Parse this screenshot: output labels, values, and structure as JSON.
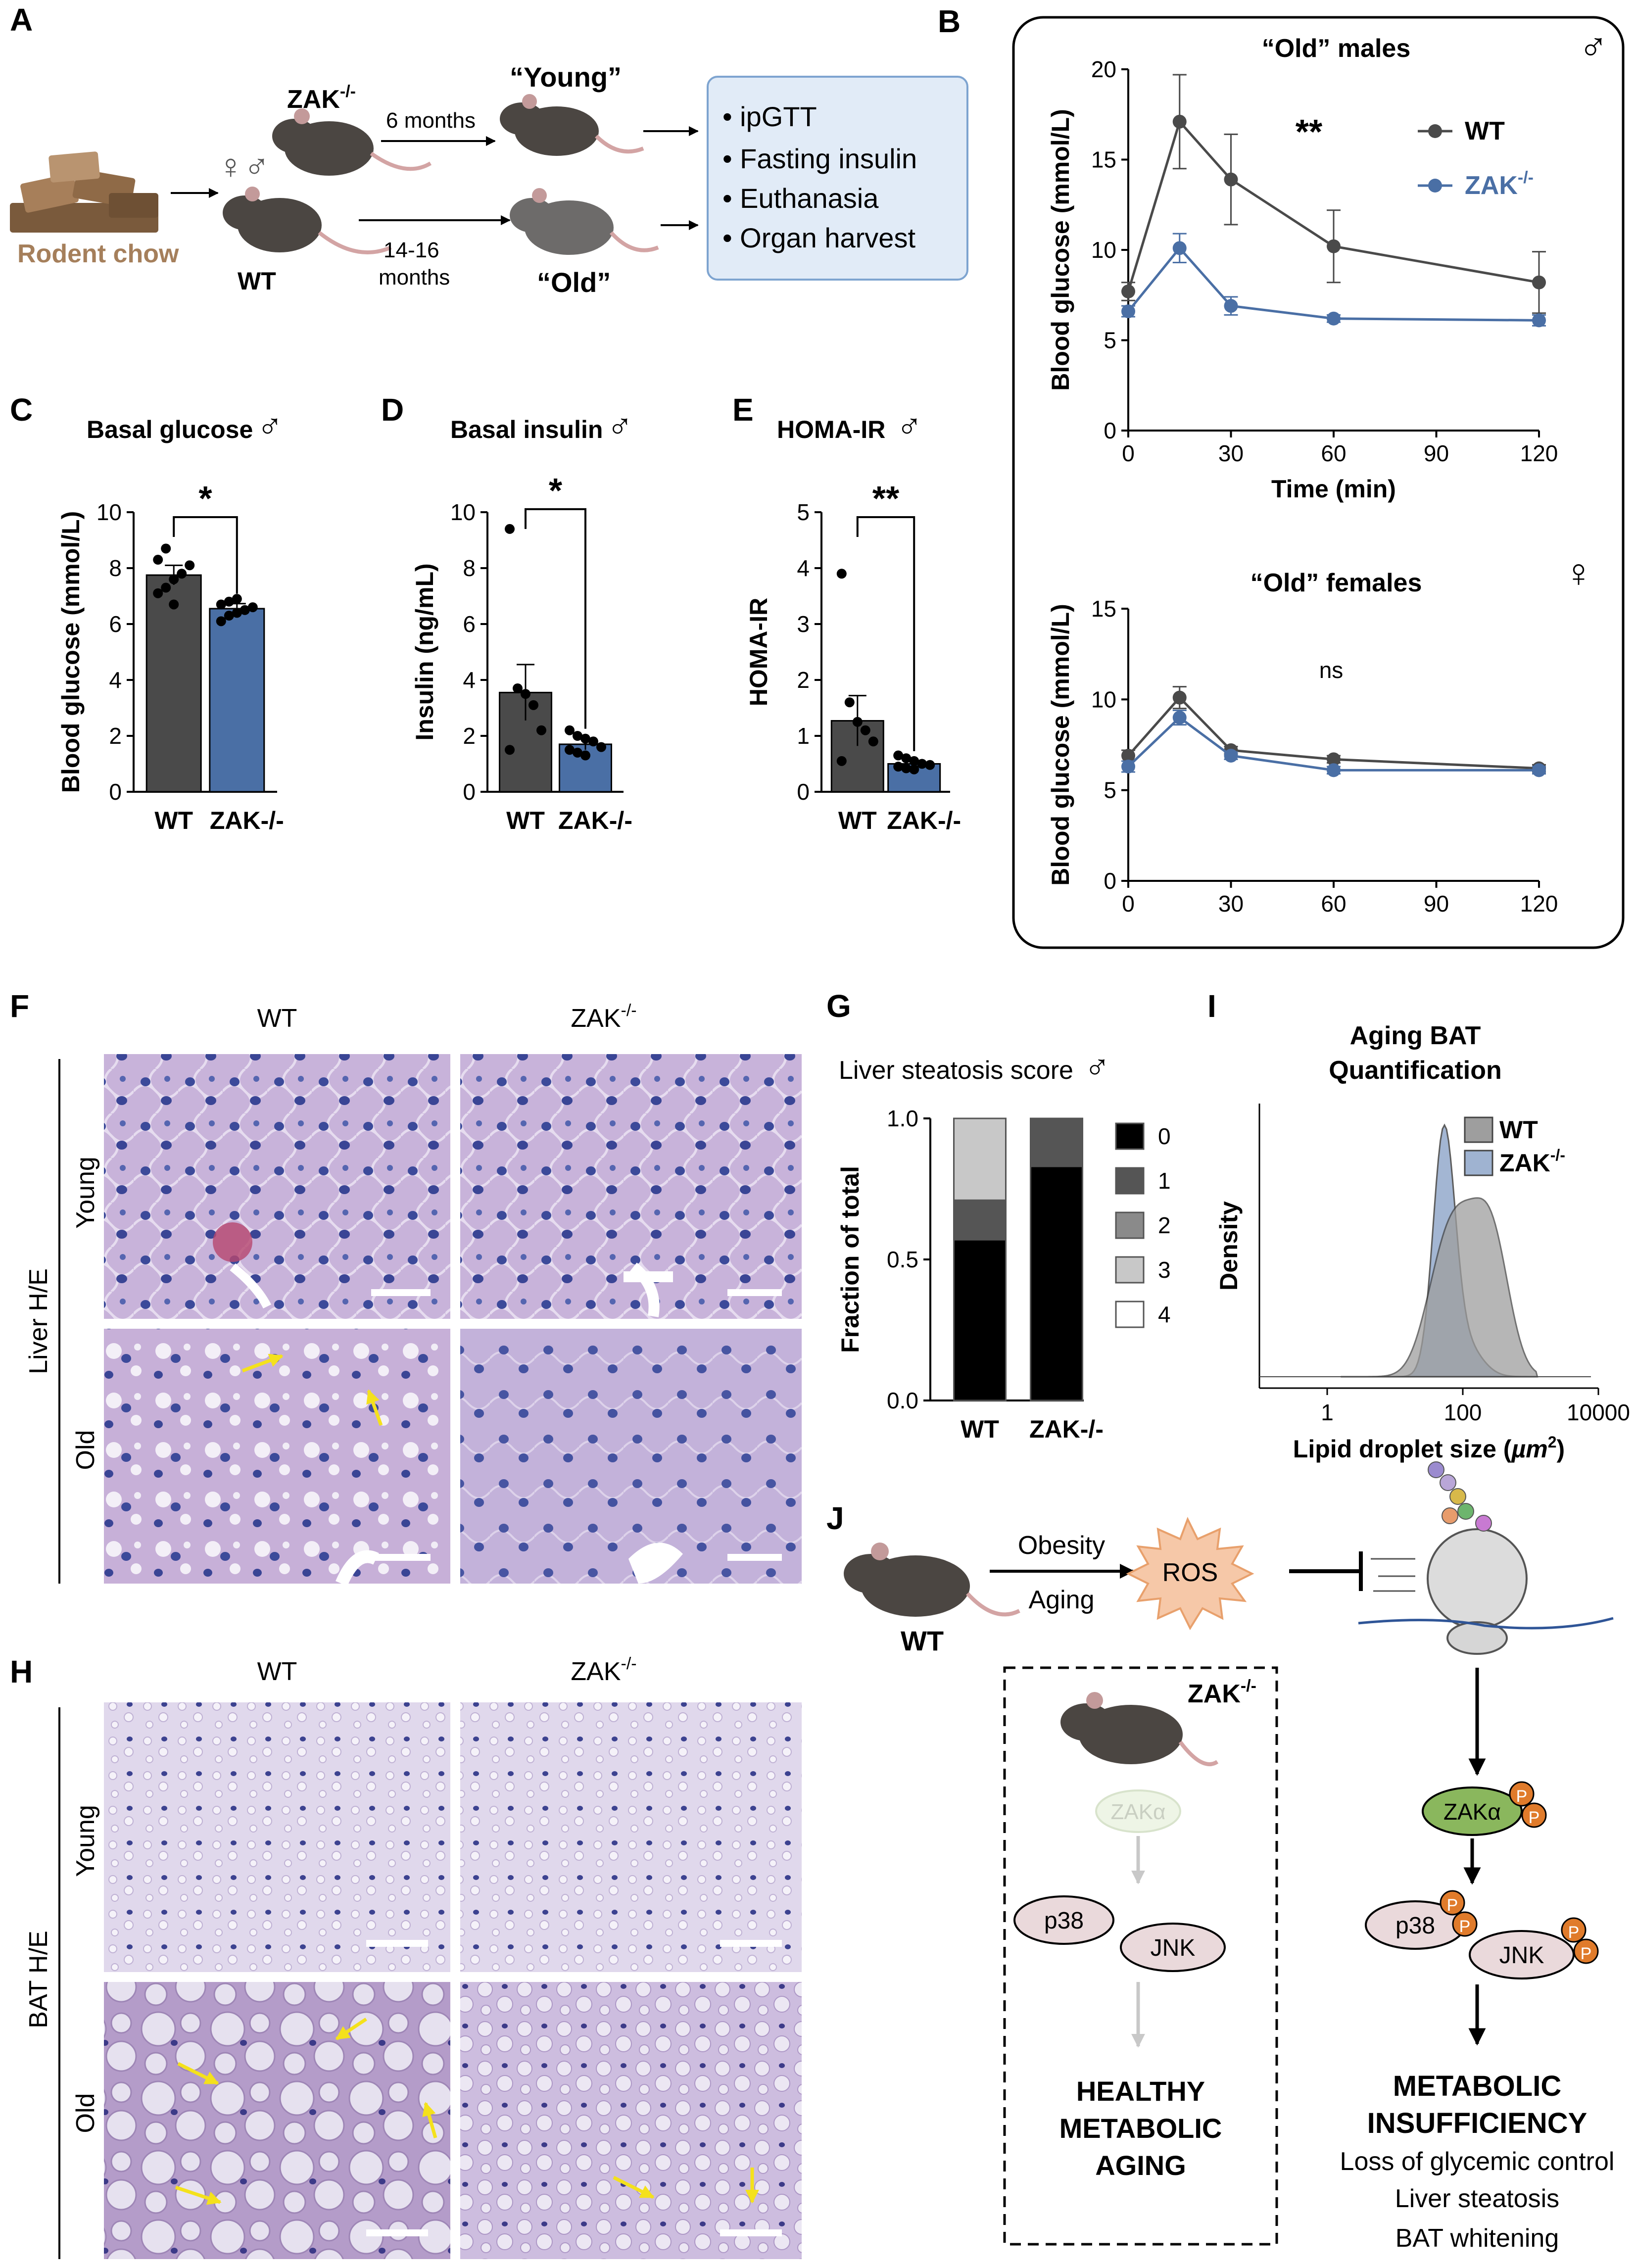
{
  "panels": {
    "A": "A",
    "B": "B",
    "C": "C",
    "D": "D",
    "E": "E",
    "F": "F",
    "G": "G",
    "H": "H",
    "I": "I",
    "J": "J"
  },
  "symbols": {
    "male": "♂",
    "female": "♀",
    "both": "♀♂"
  },
  "panel_a": {
    "chow_label": "Rodent chow",
    "zak_label": "ZAK",
    "zak_sup": "-/-",
    "wt_label": "WT",
    "young_label": "“Young”",
    "old_label": "“Old”",
    "young_time": "6 months",
    "old_time_1": "14-16",
    "old_time_2": "months",
    "procedures": [
      "ipGTT",
      "Fasting insulin",
      "Euthanasia",
      "Organ harvest"
    ]
  },
  "chart_data": [
    {
      "id": "B-males",
      "type": "line",
      "title": "“Old” males",
      "xlabel": "Time (min)",
      "ylabel": "Blood glucose (mmol/L)",
      "xlim": [
        0,
        120
      ],
      "ylim": [
        0,
        20
      ],
      "xticks": [
        0,
        30,
        60,
        90,
        120
      ],
      "yticks": [
        0,
        5,
        10,
        15,
        20
      ],
      "significance": "**",
      "series": [
        {
          "name": "WT",
          "color": "#4a4a4a",
          "x": [
            0,
            15,
            30,
            60,
            120
          ],
          "y": [
            7.7,
            17.1,
            13.9,
            10.2,
            8.2
          ],
          "err": [
            0.5,
            2.6,
            2.5,
            2.0,
            1.7
          ]
        },
        {
          "name": "ZAK-/-",
          "color": "#4a6fa5",
          "x": [
            0,
            15,
            30,
            60,
            120
          ],
          "y": [
            6.6,
            10.1,
            6.9,
            6.2,
            6.1
          ],
          "err": [
            0.3,
            0.8,
            0.5,
            0.2,
            0.3
          ]
        }
      ],
      "legend": [
        {
          "name": "WT",
          "sup": ""
        },
        {
          "name": "ZAK",
          "sup": "-/-"
        }
      ]
    },
    {
      "id": "B-females",
      "type": "line",
      "title": "“Old” females",
      "ylabel": "Blood glucose (mmol/L)",
      "xlim": [
        0,
        120
      ],
      "ylim": [
        0,
        15
      ],
      "xticks": [
        0,
        30,
        60,
        90,
        120
      ],
      "yticks": [
        0,
        5,
        10,
        15
      ],
      "significance": "ns",
      "series": [
        {
          "name": "WT",
          "color": "#4a4a4a",
          "x": [
            0,
            15,
            30,
            60,
            120
          ],
          "y": [
            6.9,
            10.1,
            7.2,
            6.7,
            6.2
          ],
          "err": [
            0.3,
            0.6,
            0.2,
            0.2,
            0.2
          ]
        },
        {
          "name": "ZAK-/-",
          "color": "#4a6fa5",
          "x": [
            0,
            15,
            30,
            60,
            120
          ],
          "y": [
            6.3,
            9.0,
            6.9,
            6.1,
            6.1
          ],
          "err": [
            0.3,
            0.4,
            0.2,
            0.2,
            0.2
          ]
        }
      ]
    },
    {
      "id": "C",
      "type": "bar",
      "title": "Basal glucose",
      "ylabel": "Blood glucose (mmol/L)",
      "categories": [
        "WT",
        "ZAK-/-"
      ],
      "values": [
        7.75,
        6.55
      ],
      "err": [
        0.35,
        0.18
      ],
      "ylim": [
        0,
        10
      ],
      "yticks": [
        0,
        2,
        4,
        6,
        8,
        10
      ],
      "significance": "*",
      "points": [
        [
          7.1,
          7.3,
          7.6,
          7.8,
          8.1,
          8.3,
          8.7,
          6.7
        ],
        [
          6.1,
          6.3,
          6.4,
          6.5,
          6.6,
          6.7,
          6.8,
          6.9
        ]
      ]
    },
    {
      "id": "D",
      "type": "bar",
      "title": "Basal insulin",
      "ylabel": "Insulin (ng/mL)",
      "categories": [
        "WT",
        "ZAK-/-"
      ],
      "values": [
        3.55,
        1.7
      ],
      "err": [
        1.0,
        0.2
      ],
      "ylim": [
        0,
        10
      ],
      "yticks": [
        0,
        2,
        4,
        6,
        8,
        10
      ],
      "significance": "*",
      "points": [
        [
          9.4,
          3.7,
          3.5,
          3.1,
          2.2,
          1.5
        ],
        [
          2.2,
          2.0,
          1.9,
          1.8,
          1.6,
          1.5,
          1.4,
          1.3
        ]
      ]
    },
    {
      "id": "E",
      "type": "bar",
      "title": "HOMA-IR",
      "ylabel": "HOMA-IR",
      "categories": [
        "WT",
        "ZAK-/-"
      ],
      "values": [
        1.27,
        0.5
      ],
      "err": [
        0.45,
        0.05
      ],
      "ylim": [
        0,
        5
      ],
      "yticks": [
        0,
        1,
        2,
        3,
        4,
        5
      ],
      "significance": "**",
      "points": [
        [
          3.9,
          1.6,
          1.25,
          1.1,
          0.9,
          0.55
        ],
        [
          0.65,
          0.6,
          0.55,
          0.5,
          0.48,
          0.45,
          0.42,
          0.4
        ]
      ]
    },
    {
      "id": "G",
      "type": "bar",
      "title": "Liver steatosis score",
      "ylabel": "Fraction of total",
      "categories": [
        "WT",
        "ZAK-/-"
      ],
      "ylim": [
        0,
        1
      ],
      "yticks": [
        "0.0",
        "0.5",
        "1.0"
      ],
      "series": [
        {
          "name": "0",
          "color": "#000000",
          "values": [
            0.57,
            0.83
          ]
        },
        {
          "name": "1",
          "color": "#555555",
          "values": [
            0.14,
            0.17
          ]
        },
        {
          "name": "2",
          "color": "#8a8a8a",
          "values": [
            0,
            0
          ]
        },
        {
          "name": "3",
          "color": "#c8c8c8",
          "values": [
            0.29,
            0
          ]
        },
        {
          "name": "4",
          "color": "#ffffff",
          "values": [
            0,
            0
          ]
        }
      ]
    },
    {
      "id": "I",
      "type": "area",
      "title_1": "Aging BAT",
      "title_2": "Quantification",
      "xlabel": "Lipid droplet size (µm²)",
      "xlabel_main": "Lipid droplet size (",
      "xlabel_unit": "µm",
      "xlabel_exp": "2",
      "xlabel_end": ")",
      "ylabel": "Density",
      "xscale": "log",
      "xticks": [
        "1",
        "100",
        "10000"
      ],
      "series": [
        {
          "name": "WT",
          "color": "#9e9e9e"
        },
        {
          "name": "ZAK-/-",
          "color": "#9fb3d1"
        }
      ],
      "legend": [
        {
          "name": "WT",
          "sup": ""
        },
        {
          "name": "ZAK",
          "sup": "-/-"
        }
      ]
    }
  ],
  "panel_f": {
    "col_wt": "WT",
    "col_zak": "ZAK",
    "sup": "-/-",
    "row_young": "Young",
    "row_old": "Old",
    "side_label": "Liver H/E"
  },
  "panel_h": {
    "col_wt": "WT",
    "col_zak": "ZAK",
    "sup": "-/-",
    "row_young": "Young",
    "row_old": "Old",
    "side_label": "BAT H/E"
  },
  "panel_j": {
    "wt": "WT",
    "obesity": "Obesity",
    "aging": "Aging",
    "ros": "ROS",
    "zak_ko": "ZAK",
    "sup": "-/-",
    "zak_alpha": "ZAKα",
    "p38": "p38",
    "jnk": "JNK",
    "p": "P",
    "healthy": [
      "HEALTHY",
      "METABOLIC",
      "AGING"
    ],
    "insuff": [
      "METABOLIC",
      "INSUFFICIENCY"
    ],
    "outcomes": [
      "Loss of glycemic control",
      "Liver steatosis",
      "BAT whitening"
    ]
  }
}
